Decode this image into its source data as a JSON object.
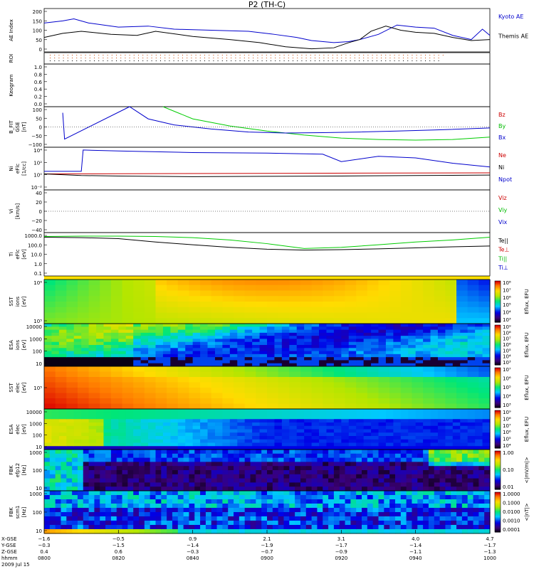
{
  "title": "P2 (TH-C)",
  "panels": [
    {
      "id": "ae",
      "ylabel": [
        "AE Index"
      ],
      "ticks": [
        "200",
        "150",
        "100",
        "50",
        "0"
      ],
      "legend": [
        {
          "text": "Kyoto AE",
          "color": "#0000cc"
        },
        {
          "text": "Themis AE",
          "color": "#000000"
        }
      ]
    },
    {
      "id": "roi",
      "ylabel": [
        "ROI"
      ],
      "ticks": []
    },
    {
      "id": "keogram",
      "ylabel": [
        "Keogram"
      ],
      "ticks": [
        "1.0",
        "0.8",
        "0.6",
        "0.4",
        "0.2",
        "0.0"
      ]
    },
    {
      "id": "bfit",
      "ylabel": [
        "B_FIT",
        "GSE",
        "[nT]"
      ],
      "ticks": [
        "100",
        "50",
        "0",
        "−50",
        "−100"
      ],
      "legend": [
        {
          "text": "Bz",
          "color": "#cc0000"
        },
        {
          "text": "By",
          "color": "#00bb00"
        },
        {
          "text": "Bx",
          "color": "#0000cc"
        }
      ]
    },
    {
      "id": "ni",
      "ylabel": [
        "Ni",
        "eFlc",
        "[1/cc]"
      ],
      "ticks": [
        "10⁴",
        "10²",
        "10⁰",
        "10⁻²"
      ],
      "legend": [
        {
          "text": "Ne",
          "color": "#cc0000"
        },
        {
          "text": "Ni",
          "color": "#000000"
        },
        {
          "text": "Npot",
          "color": "#0000cc"
        }
      ]
    },
    {
      "id": "vi",
      "ylabel": [
        "Vi",
        "[km/s]"
      ],
      "ticks": [
        "40",
        "20",
        "0",
        "−20",
        "−40"
      ],
      "legend": [
        {
          "text": "Viz",
          "color": "#cc0000"
        },
        {
          "text": "Viy",
          "color": "#00bb00"
        },
        {
          "text": "Vix",
          "color": "#0000cc"
        }
      ]
    },
    {
      "id": "ti",
      "ylabel": [
        "Ti",
        "eFlc",
        "[eV]"
      ],
      "ticks": [
        "1000.0",
        "100.0",
        "10.0",
        "1.0",
        "0.1"
      ],
      "legend": [
        {
          "text": "Te||",
          "color": "#000000"
        },
        {
          "text": "Te⊥",
          "color": "#cc0000"
        },
        {
          "text": "Ti||",
          "color": "#00bb00"
        },
        {
          "text": "Ti⊥",
          "color": "#0000cc"
        }
      ]
    },
    {
      "id": "sst_i",
      "ylabel": [
        "SST",
        "ions",
        "[eV]"
      ],
      "ticks": [
        "10⁶",
        "10⁵"
      ],
      "units": "Eflux, EFU",
      "cbar": [
        "10⁸",
        "10⁷",
        "10⁶",
        "10⁵",
        "10⁴",
        "10³"
      ]
    },
    {
      "id": "esa_i",
      "ylabel": [
        "ESA",
        "ions",
        "[eV]"
      ],
      "ticks": [
        "10000",
        "1000",
        "100",
        "10"
      ],
      "units": "Eflux, EFU",
      "cbar": [
        "10⁹",
        "10⁸",
        "10⁷",
        "10⁶",
        "10⁵",
        "10⁴",
        "10³"
      ]
    },
    {
      "id": "sst_e",
      "ylabel": [
        "SST",
        "elec",
        "[eV]"
      ],
      "ticks": [
        "10⁵"
      ],
      "units": "Eflux, EFU",
      "cbar": [
        "10⁷",
        "10⁶",
        "10⁵",
        "10⁴",
        "10³"
      ]
    },
    {
      "id": "esa_e",
      "ylabel": [
        "ESA",
        "elec",
        "[eV]"
      ],
      "ticks": [
        "10000",
        "1000",
        "100",
        "10"
      ],
      "units": "Eflux, EFU",
      "cbar": [
        "10⁹",
        "10⁸",
        "10⁷",
        "10⁶",
        "10⁵",
        "10⁴"
      ]
    },
    {
      "id": "fbk1",
      "ylabel": [
        "FBK",
        "efp12",
        "[Hz]"
      ],
      "ticks": [
        "1000",
        "100",
        "10"
      ],
      "units": "<|mV/m|>",
      "cbar": [
        "1.00",
        "0.10",
        "0.01"
      ]
    },
    {
      "id": "fbk2",
      "ylabel": [
        "FBK",
        "scm1",
        "[Hz]"
      ],
      "ticks": [
        "1000",
        "100",
        "10"
      ],
      "units": "<|nT|>",
      "cbar": [
        "1.0000",
        "0.1000",
        "0.0100",
        "0.0010",
        "0.0001"
      ]
    }
  ],
  "xaxis": {
    "rowlabels": [
      "X-GSE",
      "Y-GSE",
      "Z-GSE",
      "hhmm",
      "2009 Jul 15"
    ],
    "cols": [
      [
        "−1.6",
        "−0.3",
        "0.4",
        "0800"
      ],
      [
        "−0.5",
        "−1.5",
        "0.6",
        "0820"
      ],
      [
        "0.9",
        "−1.4",
        "−0.3",
        "0840"
      ],
      [
        "2.1",
        "−1.9",
        "−0.7",
        "0900"
      ],
      [
        "3.1",
        "−1.7",
        "−0.9",
        "0920"
      ],
      [
        "4.0",
        "−1.4",
        "−1.1",
        "0940"
      ],
      [
        "4.7",
        "−1.7",
        "−1.3",
        "1000"
      ]
    ]
  },
  "colors": {
    "frame": "#000000",
    "blue": "#0000cc",
    "green": "#00cc00",
    "red": "#cc0000",
    "black": "#000000"
  },
  "chart_data": [
    {
      "type": "line",
      "title": "AE Index",
      "x_range": [
        "0800",
        "1000"
      ],
      "ylim": [
        0,
        200
      ],
      "series": [
        {
          "name": "Kyoto AE",
          "x": [
            0,
            5,
            8,
            12,
            20,
            28,
            35,
            45,
            55,
            62,
            68,
            72,
            78,
            82,
            85,
            90,
            95,
            100,
            105,
            110,
            115,
            118,
            120
          ],
          "values": [
            140,
            150,
            160,
            140,
            120,
            125,
            110,
            105,
            100,
            85,
            70,
            55,
            45,
            50,
            60,
            85,
            130,
            120,
            115,
            80,
            60,
            110,
            80
          ]
        },
        {
          "name": "Themis AE",
          "x": [
            0,
            5,
            10,
            18,
            25,
            30,
            40,
            50,
            58,
            65,
            72,
            78,
            82,
            85,
            88,
            92,
            96,
            100,
            105,
            110,
            115,
            120
          ],
          "values": [
            70,
            90,
            100,
            85,
            80,
            100,
            75,
            60,
            45,
            25,
            15,
            20,
            45,
            60,
            100,
            125,
            105,
            95,
            90,
            70,
            55,
            60
          ]
        }
      ]
    },
    {
      "type": "line",
      "title": "B_FIT GSE",
      "ylim": [
        -100,
        100
      ],
      "series": [
        {
          "name": "Bz",
          "x": [],
          "values": []
        },
        {
          "name": "By",
          "x": [
            32,
            40,
            50,
            60,
            70,
            80,
            90,
            100,
            110,
            120
          ],
          "values": [
            100,
            40,
            5,
            -20,
            -40,
            -55,
            -62,
            -65,
            -62,
            -50
          ]
        },
        {
          "name": "Bx",
          "x": [
            5,
            5.5,
            23,
            28,
            35,
            45,
            55,
            65,
            75,
            85,
            95,
            105,
            120
          ],
          "values": [
            70,
            -60,
            100,
            40,
            10,
            -10,
            -25,
            -30,
            -28,
            -25,
            -20,
            -15,
            -5
          ]
        }
      ]
    },
    {
      "type": "line",
      "title": "Ni eFlc",
      "ylog": true,
      "series": [
        {
          "name": "Ne",
          "x": [
            0,
            120
          ],
          "values": [
            1,
            1.6
          ]
        },
        {
          "name": "Ni",
          "x": [
            0,
            10,
            20,
            40,
            60,
            80,
            100,
            120
          ],
          "values": [
            1,
            0.5,
            0.4,
            0.3,
            0.35,
            0.4,
            0.5,
            0.6
          ]
        },
        {
          "name": "Npot",
          "x": [
            0,
            10,
            10.5,
            20,
            40,
            60,
            75,
            80,
            90,
            100,
            110,
            120
          ],
          "values": [
            3,
            3,
            30000,
            20000,
            10000,
            8000,
            5000,
            200,
            2000,
            1000,
            100,
            20
          ]
        }
      ]
    },
    {
      "type": "line",
      "title": "Vi",
      "ylim": [
        -50,
        50
      ],
      "series": []
    },
    {
      "type": "line",
      "title": "Ti eFlc",
      "ylog": true,
      "series": [
        {
          "name": "Te||",
          "x": [
            0,
            10,
            20,
            30,
            40,
            50,
            60,
            70,
            80,
            90,
            100,
            110,
            120
          ],
          "values": [
            1000,
            900,
            700,
            300,
            150,
            80,
            50,
            40,
            45,
            55,
            70,
            90,
            110
          ]
        },
        {
          "name": "Ti||",
          "x": [
            0,
            10,
            20,
            30,
            40,
            50,
            60,
            70,
            80,
            90,
            100,
            110,
            120
          ],
          "values": [
            1200,
            1300,
            1300,
            1200,
            900,
            500,
            200,
            60,
            80,
            150,
            300,
            500,
            1000
          ]
        }
      ]
    },
    {
      "type": "heatmap",
      "title": "SST ions"
    },
    {
      "type": "heatmap",
      "title": "ESA ions"
    },
    {
      "type": "heatmap",
      "title": "SST elec"
    },
    {
      "type": "heatmap",
      "title": "ESA elec"
    },
    {
      "type": "heatmap",
      "title": "FBK efp12"
    },
    {
      "type": "heatmap",
      "title": "FBK scm1"
    }
  ]
}
